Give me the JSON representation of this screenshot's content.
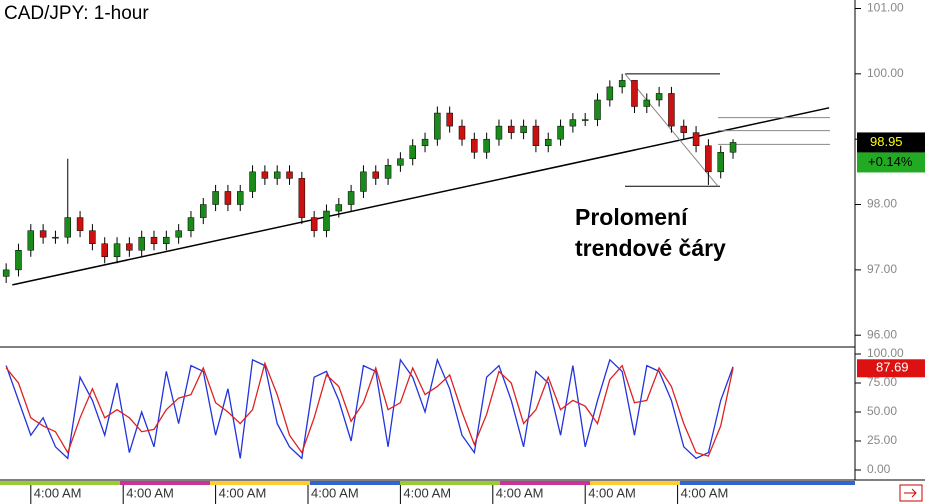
{
  "chart_data": {
    "type": "candlestick",
    "title": "CAD/JPY: 1-hour",
    "annotation": [
      "Prolomení",
      "trendové čáry"
    ],
    "xlim": [
      -0.5,
      68.9
    ],
    "xticks": [
      {
        "value": 2,
        "label": "4:00 AM"
      },
      {
        "value": 9.5,
        "label": "4:00 AM"
      },
      {
        "value": 17,
        "label": "4:00 AM"
      },
      {
        "value": 24.5,
        "label": "4:00 AM"
      },
      {
        "value": 32,
        "label": "4:00 AM"
      },
      {
        "value": 39.5,
        "label": "4:00 AM"
      },
      {
        "value": 47,
        "label": "4:00 AM"
      },
      {
        "value": 54.5,
        "label": "4:00 AM"
      }
    ],
    "ylim": [
      95.85,
      101.13
    ],
    "yticks": [
      {
        "value": 96,
        "label": "96.00"
      },
      {
        "value": 97,
        "label": "97.00"
      },
      {
        "value": 98,
        "label": "98.00"
      },
      {
        "value": 99,
        "label": "99.00"
      },
      {
        "value": 100,
        "label": "100.00"
      },
      {
        "value": 101,
        "label": "101.00"
      }
    ],
    "open": [
      96.9,
      97.0,
      97.3,
      97.6,
      97.5,
      97.5,
      97.8,
      97.6,
      97.4,
      97.2,
      97.4,
      97.3,
      97.5,
      97.4,
      97.5,
      97.6,
      97.8,
      98.0,
      98.2,
      98.0,
      98.2,
      98.5,
      98.4,
      98.5,
      98.4,
      97.8,
      97.6,
      97.9,
      98.0,
      98.2,
      98.5,
      98.4,
      98.6,
      98.7,
      98.9,
      99.0,
      99.4,
      99.2,
      99.0,
      98.8,
      99.0,
      99.2,
      99.1,
      99.2,
      98.9,
      99.0,
      99.2,
      99.3,
      99.3,
      99.6,
      99.8,
      99.9,
      99.5,
      99.6,
      99.7,
      99.2,
      99.1,
      98.9,
      98.5,
      98.8
    ],
    "high": [
      97.1,
      97.4,
      97.7,
      97.7,
      97.6,
      98.7,
      97.9,
      97.7,
      97.5,
      97.5,
      97.5,
      97.6,
      97.6,
      97.6,
      97.7,
      97.9,
      98.1,
      98.3,
      98.3,
      98.3,
      98.6,
      98.6,
      98.6,
      98.6,
      98.5,
      97.9,
      98.0,
      98.1,
      98.3,
      98.6,
      98.6,
      98.7,
      98.8,
      99.0,
      99.1,
      99.5,
      99.5,
      99.3,
      99.1,
      99.1,
      99.3,
      99.3,
      99.3,
      99.3,
      99.1,
      99.3,
      99.4,
      99.4,
      99.7,
      99.9,
      100.0,
      99.9,
      99.7,
      99.8,
      99.8,
      99.3,
      99.2,
      99.0,
      98.9,
      99.0
    ],
    "low": [
      96.8,
      96.9,
      97.2,
      97.4,
      97.4,
      97.4,
      97.5,
      97.3,
      97.1,
      97.1,
      97.2,
      97.2,
      97.3,
      97.3,
      97.4,
      97.5,
      97.7,
      97.9,
      97.9,
      97.9,
      98.1,
      98.3,
      98.3,
      98.3,
      97.7,
      97.5,
      97.5,
      97.8,
      97.9,
      98.1,
      98.3,
      98.3,
      98.5,
      98.6,
      98.8,
      98.9,
      99.1,
      98.9,
      98.7,
      98.7,
      98.9,
      99.0,
      99.0,
      98.8,
      98.8,
      98.9,
      99.1,
      99.2,
      99.2,
      99.5,
      99.7,
      99.4,
      99.4,
      99.5,
      99.1,
      99.0,
      98.8,
      98.3,
      98.4,
      98.7
    ],
    "close": [
      97.0,
      97.3,
      97.6,
      97.5,
      97.5,
      97.8,
      97.6,
      97.4,
      97.2,
      97.4,
      97.3,
      97.5,
      97.4,
      97.5,
      97.6,
      97.8,
      98.0,
      98.2,
      98.0,
      98.2,
      98.5,
      98.4,
      98.5,
      98.4,
      97.8,
      97.6,
      97.9,
      98.0,
      98.2,
      98.5,
      98.4,
      98.6,
      98.7,
      98.9,
      99.0,
      99.4,
      99.2,
      99.0,
      98.8,
      99.0,
      99.2,
      99.1,
      99.2,
      98.9,
      99.0,
      99.2,
      99.3,
      99.3,
      99.6,
      99.8,
      99.9,
      99.5,
      99.6,
      99.7,
      99.2,
      99.1,
      98.9,
      98.5,
      98.8,
      98.95
    ],
    "up_color": "#1a8a1a",
    "down_color": "#cc1111",
    "trendline": {
      "x": [
        0.5,
        66.8
      ],
      "y": [
        96.77,
        99.48
      ],
      "color": "#000000"
    },
    "fib_levels": [
      100.0,
      99.33,
      99.13,
      98.92,
      98.28
    ],
    "last_price": 98.95,
    "change": "+0.14%",
    "stochastic": {
      "ylim": [
        0,
        100
      ],
      "yticks": [
        {
          "value": 0,
          "label": "0.00"
        },
        {
          "value": 25,
          "label": "25.00"
        },
        {
          "value": 50,
          "label": "50.00"
        },
        {
          "value": 75,
          "label": "75.00"
        },
        {
          "value": 100,
          "label": "100.00"
        }
      ],
      "series": [
        {
          "color": "#2233dd",
          "values": [
            90,
            60,
            30,
            45,
            20,
            10,
            80,
            60,
            30,
            75,
            15,
            50,
            20,
            85,
            40,
            90,
            85,
            30,
            70,
            10,
            95,
            90,
            40,
            20,
            10,
            80,
            85,
            60,
            25,
            90,
            85,
            20,
            95,
            80,
            50,
            95,
            70,
            30,
            15,
            80,
            90,
            60,
            20,
            85,
            75,
            30,
            90,
            20,
            60,
            95,
            85,
            30,
            90,
            85,
            60,
            20,
            10,
            15,
            60,
            89
          ]
        },
        {
          "color": "#dd2222",
          "values": [
            88,
            75,
            45,
            38,
            33,
            15,
            45,
            70,
            45,
            52,
            45,
            33,
            35,
            52,
            62,
            65,
            88,
            58,
            50,
            40,
            52,
            92,
            65,
            30,
            15,
            45,
            82,
            72,
            42,
            58,
            88,
            52,
            58,
            88,
            65,
            72,
            82,
            50,
            22,
            48,
            85,
            75,
            40,
            52,
            80,
            52,
            60,
            55,
            40,
            78,
            90,
            58,
            60,
            88,
            72,
            40,
            15,
            12,
            38,
            87.69
          ]
        }
      ],
      "last": 87.69
    }
  }
}
